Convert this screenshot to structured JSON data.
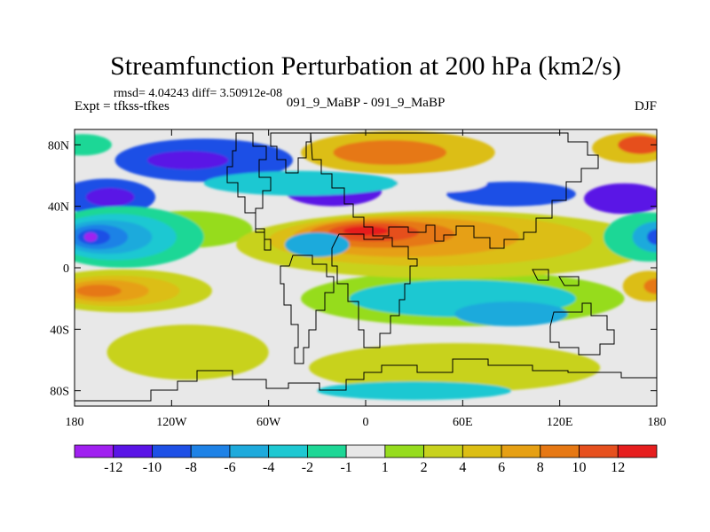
{
  "chart_data": {
    "type": "heatmap",
    "title": "Streamfunction Perturbation at 200 hPa (km2/s)",
    "stats": "rmsd= 4.04243 diff= 3.50912e-08",
    "left_label": "Expt = tfkss-tfkes",
    "center_label": "091_9_MaBP - 091_9_MaBP",
    "right_label": "DJF",
    "xlim": [
      -180,
      180
    ],
    "ylim": [
      -90,
      90
    ],
    "x_ticks": [
      {
        "value": -180,
        "label": "180"
      },
      {
        "value": -120,
        "label": "120W"
      },
      {
        "value": -60,
        "label": "60W"
      },
      {
        "value": 0,
        "label": "0"
      },
      {
        "value": 60,
        "label": "60E"
      },
      {
        "value": 120,
        "label": "120E"
      },
      {
        "value": 180,
        "label": "180"
      }
    ],
    "y_ticks": [
      {
        "value": 80,
        "label": "80N"
      },
      {
        "value": 40,
        "label": "40N"
      },
      {
        "value": 0,
        "label": "0"
      },
      {
        "value": -40,
        "label": "40S"
      },
      {
        "value": -80,
        "label": "80S"
      }
    ],
    "colorbar": {
      "colors": [
        "#a020f0",
        "#5a14e6",
        "#1e50e6",
        "#1e82e6",
        "#1eaadc",
        "#1ec8d2",
        "#1ed796",
        "#e8e8e8",
        "#96dc1e",
        "#c8d21e",
        "#dcbe14",
        "#e6a014",
        "#e67814",
        "#e6501e",
        "#e61e1e"
      ],
      "labels": [
        "-12",
        "-10",
        "-8",
        "-6",
        "-4",
        "-2",
        "-1",
        "1",
        "2",
        "4",
        "6",
        "8",
        "10",
        "12"
      ]
    },
    "regions": [
      {
        "level": 2,
        "lon": -160,
        "lat": 46,
        "rlon": 30,
        "rlat": 12
      },
      {
        "level": 1,
        "lon": -158,
        "lat": 46,
        "rlon": 15,
        "rlat": 6
      },
      {
        "level": 2,
        "lon": -100,
        "lat": 70,
        "rlon": 55,
        "rlat": 14
      },
      {
        "level": 1,
        "lon": -110,
        "lat": 70,
        "rlon": 25,
        "rlat": 6
      },
      {
        "level": 1,
        "lon": -20,
        "lat": 50,
        "rlon": 30,
        "rlat": 10
      },
      {
        "level": 1,
        "lon": 160,
        "lat": 45,
        "rlon": 25,
        "rlat": 10
      },
      {
        "level": 2,
        "lon": 90,
        "lat": 48,
        "rlon": 40,
        "rlat": 8
      },
      {
        "level": 8,
        "lon": -110,
        "lat": 25,
        "rlon": 40,
        "rlat": 12
      },
      {
        "level": 8,
        "lon": 60,
        "lat": -20,
        "rlon": 100,
        "rlat": 18
      },
      {
        "level": 9,
        "lon": -110,
        "lat": -55,
        "rlon": 50,
        "rlat": 18
      },
      {
        "level": 9,
        "lon": 55,
        "lat": -65,
        "rlon": 90,
        "rlat": 16
      },
      {
        "level": 8,
        "lon": 30,
        "lat": 82,
        "rlon": 20,
        "rlat": 6
      },
      {
        "level": 7,
        "lon": 45,
        "lat": 55,
        "rlon": 30,
        "rlat": 6
      },
      {
        "level": 10,
        "lon": 20,
        "lat": 75,
        "rlon": 60,
        "rlat": 14
      },
      {
        "level": 12,
        "lon": 15,
        "lat": 75,
        "rlon": 35,
        "rlat": 8
      },
      {
        "level": 10,
        "lon": 165,
        "lat": 78,
        "rlon": 25,
        "rlat": 10
      },
      {
        "level": 13,
        "lon": 170,
        "lat": 80,
        "rlon": 14,
        "rlat": 6
      },
      {
        "level": 9,
        "lon": 50,
        "lat": 15,
        "rlon": 130,
        "rlat": 22
      },
      {
        "level": 10,
        "lon": 40,
        "lat": 18,
        "rlon": 100,
        "rlat": 17
      },
      {
        "level": 11,
        "lon": 25,
        "lat": 20,
        "rlon": 70,
        "rlat": 13
      },
      {
        "level": 12,
        "lon": 10,
        "lat": 22,
        "rlon": 45,
        "rlat": 9
      },
      {
        "level": 13,
        "lon": 5,
        "lat": 23,
        "rlon": 28,
        "rlat": 6
      },
      {
        "level": 14,
        "lon": 0,
        "lat": 24,
        "rlon": 14,
        "rlat": 3
      },
      {
        "level": 9,
        "lon": -150,
        "lat": -15,
        "rlon": 55,
        "rlat": 14
      },
      {
        "level": 10,
        "lon": -155,
        "lat": -15,
        "rlon": 40,
        "rlat": 10
      },
      {
        "level": 11,
        "lon": -160,
        "lat": -15,
        "rlon": 26,
        "rlat": 7
      },
      {
        "level": 12,
        "lon": -165,
        "lat": -15,
        "rlon": 14,
        "rlat": 4
      },
      {
        "level": 10,
        "lon": 175,
        "lat": -12,
        "rlon": 16,
        "rlat": 10
      },
      {
        "level": 12,
        "lon": 180,
        "lat": -12,
        "rlon": 8,
        "rlat": 5
      },
      {
        "level": 6,
        "lon": -150,
        "lat": 20,
        "rlon": 50,
        "rlat": 20
      },
      {
        "level": 5,
        "lon": -155,
        "lat": 20,
        "rlon": 38,
        "rlat": 15
      },
      {
        "level": 4,
        "lon": -160,
        "lat": 20,
        "rlon": 28,
        "rlat": 11
      },
      {
        "level": 3,
        "lon": -165,
        "lat": 20,
        "rlon": 18,
        "rlat": 8
      },
      {
        "level": 2,
        "lon": -168,
        "lat": 20,
        "rlon": 10,
        "rlat": 5
      },
      {
        "level": 0,
        "lon": -170,
        "lat": 20,
        "rlon": 4,
        "rlat": 3
      },
      {
        "level": 6,
        "lon": 175,
        "lat": 20,
        "rlon": 28,
        "rlat": 16
      },
      {
        "level": 4,
        "lon": 180,
        "lat": 20,
        "rlon": 15,
        "rlat": 10
      },
      {
        "level": 2,
        "lon": 180,
        "lat": 20,
        "rlon": 6,
        "rlat": 5
      },
      {
        "level": 5,
        "lon": -40,
        "lat": 55,
        "rlon": 60,
        "rlat": 8
      },
      {
        "level": 5,
        "lon": 60,
        "lat": -20,
        "rlon": 70,
        "rlat": 12
      },
      {
        "level": 4,
        "lon": 90,
        "lat": -30,
        "rlon": 35,
        "rlat": 8
      },
      {
        "level": 5,
        "lon": 30,
        "lat": -80,
        "rlon": 60,
        "rlat": 6
      },
      {
        "level": 6,
        "lon": -175,
        "lat": 80,
        "rlon": 18,
        "rlat": 7
      },
      {
        "level": 4,
        "lon": -30,
        "lat": 15,
        "rlon": 20,
        "rlat": 8
      }
    ]
  }
}
